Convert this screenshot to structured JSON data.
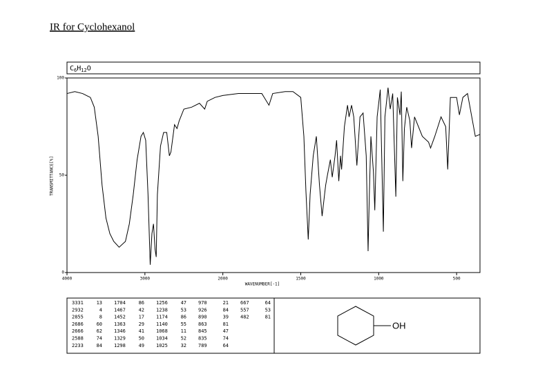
{
  "heading": "IR for Cyclohexanol",
  "formula": [
    "C",
    "6",
    "H",
    "12",
    "O"
  ],
  "structure_label": "OH",
  "peak_table": [
    [
      [
        3331,
        13
      ],
      [
        2932,
        4
      ],
      [
        2855,
        8
      ],
      [
        2686,
        60
      ],
      [
        2666,
        62
      ],
      [
        2588,
        74
      ],
      [
        2233,
        84
      ]
    ],
    [
      [
        1704,
        86
      ],
      [
        1467,
        42
      ],
      [
        1452,
        17
      ],
      [
        1363,
        29
      ],
      [
        1346,
        41
      ],
      [
        1329,
        50
      ],
      [
        1298,
        49
      ]
    ],
    [
      [
        1256,
        47
      ],
      [
        1238,
        53
      ],
      [
        1174,
        86
      ],
      [
        1140,
        55
      ],
      [
        1068,
        11
      ],
      [
        1034,
        52
      ],
      [
        1025,
        32
      ]
    ],
    [
      [
        970,
        21
      ],
      [
        926,
        84
      ],
      [
        890,
        39
      ],
      [
        863,
        81
      ],
      [
        845,
        47
      ],
      [
        835,
        74
      ],
      [
        789,
        64
      ]
    ],
    [
      [
        667,
        64
      ],
      [
        557,
        53
      ],
      [
        482,
        81
      ]
    ]
  ],
  "chart_data": {
    "type": "line",
    "x_label": "WAVENUMBER[-1]",
    "y_label": "TRANSMITTANCE[%]",
    "color": "#000000",
    "xlim": [
      4000,
      350
    ],
    "x_break": {
      "at": 2000,
      "stretch": 2
    },
    "xticks": [
      4000,
      3000,
      2000,
      1500,
      1000,
      500
    ],
    "ylim": [
      0,
      100
    ],
    "yticks": [
      0,
      50,
      100
    ],
    "x": [
      4000,
      3900,
      3800,
      3700,
      3650,
      3600,
      3550,
      3500,
      3450,
      3400,
      3331,
      3250,
      3200,
      3150,
      3100,
      3050,
      3020,
      2990,
      2960,
      2932,
      2910,
      2890,
      2870,
      2855,
      2840,
      2800,
      2760,
      2720,
      2686,
      2666,
      2620,
      2588,
      2560,
      2500,
      2400,
      2300,
      2233,
      2200,
      2100,
      2000,
      1900,
      1800,
      1750,
      1704,
      1680,
      1600,
      1550,
      1500,
      1480,
      1467,
      1452,
      1440,
      1420,
      1400,
      1380,
      1363,
      1346,
      1340,
      1329,
      1310,
      1298,
      1280,
      1270,
      1256,
      1245,
      1238,
      1220,
      1200,
      1190,
      1174,
      1160,
      1140,
      1120,
      1100,
      1080,
      1068,
      1060,
      1050,
      1034,
      1025,
      1010,
      990,
      970,
      960,
      940,
      926,
      910,
      890,
      880,
      863,
      855,
      845,
      835,
      820,
      800,
      789,
      770,
      720,
      680,
      667,
      640,
      600,
      570,
      557,
      540,
      500,
      482,
      460,
      430,
      380,
      350
    ],
    "values": [
      92,
      93,
      92,
      90,
      85,
      70,
      45,
      28,
      20,
      16,
      13,
      16,
      25,
      40,
      58,
      70,
      72,
      68,
      40,
      4,
      20,
      25,
      12,
      8,
      40,
      65,
      72,
      72,
      60,
      62,
      76,
      74,
      78,
      84,
      85,
      87,
      84,
      88,
      90,
      91,
      92,
      92,
      92,
      86,
      92,
      93,
      93,
      90,
      70,
      42,
      17,
      40,
      60,
      70,
      45,
      29,
      41,
      45,
      50,
      58,
      49,
      60,
      68,
      47,
      60,
      53,
      75,
      86,
      80,
      86,
      80,
      55,
      80,
      82,
      60,
      11,
      40,
      70,
      52,
      32,
      80,
      94,
      21,
      80,
      95,
      84,
      92,
      39,
      90,
      81,
      93,
      47,
      74,
      85,
      78,
      64,
      80,
      70,
      67,
      64,
      70,
      80,
      75,
      53,
      90,
      90,
      81,
      90,
      92,
      70,
      71
    ]
  }
}
